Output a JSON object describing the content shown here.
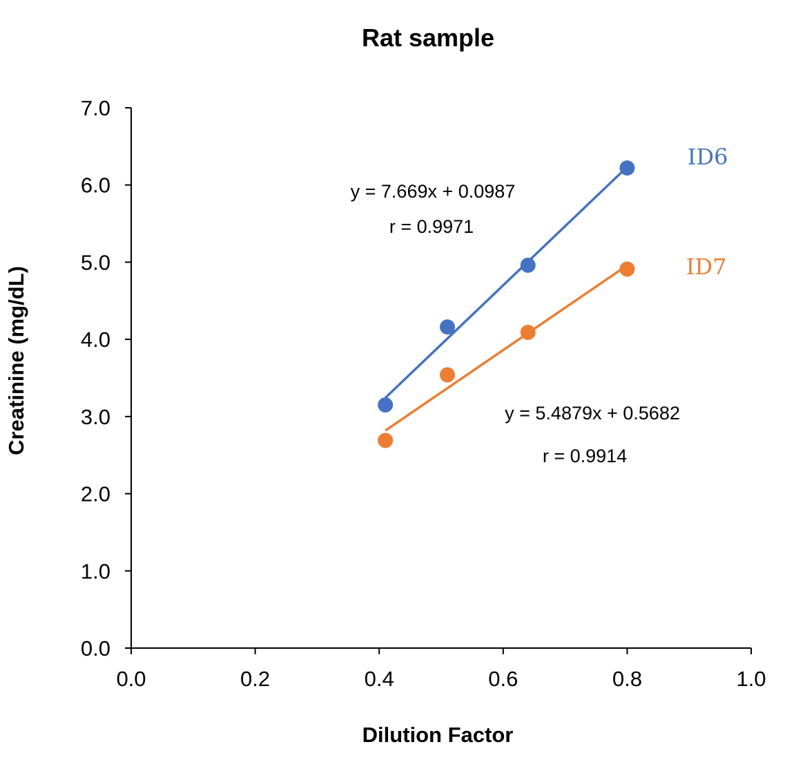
{
  "chart_data": {
    "type": "scatter",
    "title": "Rat sample",
    "xlabel": "Dilution Factor",
    "ylabel": "Creatinine (mg/dL)",
    "xlim": [
      0,
      1.0
    ],
    "ylim": [
      0,
      7.0
    ],
    "x_ticks": [
      "0.0",
      "0.2",
      "0.4",
      "0.6",
      "0.8",
      "1.0"
    ],
    "y_ticks": [
      "0.0",
      "1.0",
      "2.0",
      "3.0",
      "4.0",
      "5.0",
      "6.0",
      "7.0"
    ],
    "grid": false,
    "series": [
      {
        "name": "ID6",
        "color": "#4472C4",
        "x": [
          0.41,
          0.51,
          0.64,
          0.8
        ],
        "y": [
          3.15,
          4.16,
          4.96,
          6.22
        ],
        "trendline": {
          "slope": 7.669,
          "intercept": 0.0987
        },
        "equation": "y = 7.669x + 0.0987",
        "r_label": "r = 0.9971"
      },
      {
        "name": "ID7",
        "color": "#ED7D31",
        "x": [
          0.41,
          0.51,
          0.64,
          0.8
        ],
        "y": [
          2.69,
          3.54,
          4.09,
          4.91
        ],
        "trendline": {
          "slope": 5.4879,
          "intercept": 0.5682
        },
        "equation": "y = 5.4879x + 0.5682",
        "r_label": "r = 0.9914"
      }
    ]
  }
}
